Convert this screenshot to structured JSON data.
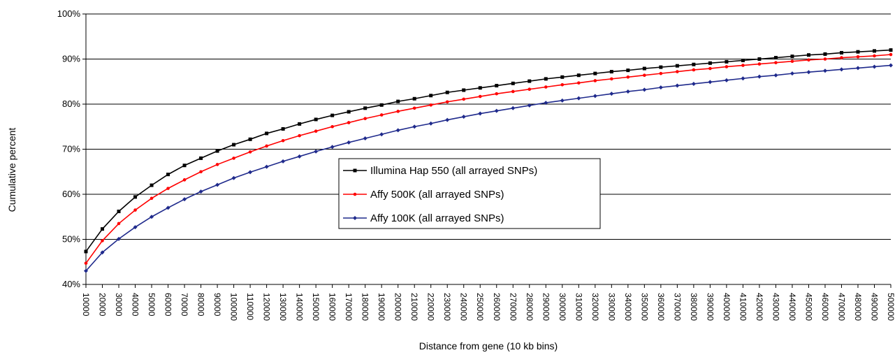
{
  "chart_data": {
    "type": "line",
    "title": "",
    "xlabel": "Distance from gene (10 kb bins)",
    "ylabel": "Cumulative percent",
    "ylim": [
      0.4,
      1.0
    ],
    "y_ticks": [
      "40%",
      "50%",
      "60%",
      "70%",
      "80%",
      "90%",
      "100%"
    ],
    "y_tick_values": [
      0.4,
      0.5,
      0.6,
      0.7,
      0.8,
      0.9,
      1.0
    ],
    "grid": "horizontal",
    "legend_position": "center",
    "x": [
      10000,
      20000,
      30000,
      40000,
      50000,
      60000,
      70000,
      80000,
      90000,
      100000,
      110000,
      120000,
      130000,
      140000,
      150000,
      160000,
      170000,
      180000,
      190000,
      200000,
      210000,
      220000,
      230000,
      240000,
      250000,
      260000,
      270000,
      280000,
      290000,
      300000,
      310000,
      320000,
      330000,
      340000,
      350000,
      360000,
      370000,
      380000,
      390000,
      400000,
      410000,
      420000,
      430000,
      440000,
      450000,
      460000,
      470000,
      480000,
      490000,
      500000
    ],
    "series": [
      {
        "name": "Illumina Hap 550 (all arrayed SNPs)",
        "color": "#000000",
        "marker": "square",
        "values": [
          0.473,
          0.523,
          0.562,
          0.594,
          0.62,
          0.644,
          0.664,
          0.68,
          0.696,
          0.71,
          0.722,
          0.735,
          0.745,
          0.756,
          0.766,
          0.775,
          0.783,
          0.791,
          0.798,
          0.806,
          0.812,
          0.819,
          0.826,
          0.831,
          0.836,
          0.841,
          0.846,
          0.851,
          0.856,
          0.86,
          0.864,
          0.868,
          0.872,
          0.875,
          0.879,
          0.882,
          0.885,
          0.888,
          0.891,
          0.894,
          0.897,
          0.9,
          0.903,
          0.906,
          0.909,
          0.911,
          0.914,
          0.916,
          0.918,
          0.92
        ]
      },
      {
        "name": "Affy 500K (all arrayed SNPs)",
        "color": "#ff0000",
        "marker": "dot",
        "values": [
          0.447,
          0.497,
          0.535,
          0.565,
          0.591,
          0.613,
          0.632,
          0.65,
          0.666,
          0.68,
          0.694,
          0.707,
          0.719,
          0.73,
          0.74,
          0.75,
          0.759,
          0.768,
          0.776,
          0.784,
          0.791,
          0.798,
          0.805,
          0.811,
          0.817,
          0.823,
          0.828,
          0.833,
          0.838,
          0.843,
          0.847,
          0.852,
          0.856,
          0.86,
          0.864,
          0.868,
          0.872,
          0.876,
          0.879,
          0.883,
          0.886,
          0.889,
          0.892,
          0.895,
          0.898,
          0.9,
          0.903,
          0.905,
          0.907,
          0.91
        ]
      },
      {
        "name": "Affy 100K (all arrayed SNPs)",
        "color": "#1f2a8c",
        "marker": "diamond",
        "values": [
          0.43,
          0.471,
          0.501,
          0.527,
          0.55,
          0.57,
          0.589,
          0.606,
          0.621,
          0.636,
          0.649,
          0.661,
          0.673,
          0.684,
          0.695,
          0.705,
          0.715,
          0.724,
          0.733,
          0.742,
          0.75,
          0.757,
          0.765,
          0.772,
          0.779,
          0.785,
          0.791,
          0.797,
          0.803,
          0.808,
          0.813,
          0.818,
          0.823,
          0.828,
          0.832,
          0.837,
          0.841,
          0.845,
          0.849,
          0.853,
          0.857,
          0.861,
          0.864,
          0.868,
          0.871,
          0.874,
          0.877,
          0.88,
          0.883,
          0.886
        ]
      }
    ]
  }
}
